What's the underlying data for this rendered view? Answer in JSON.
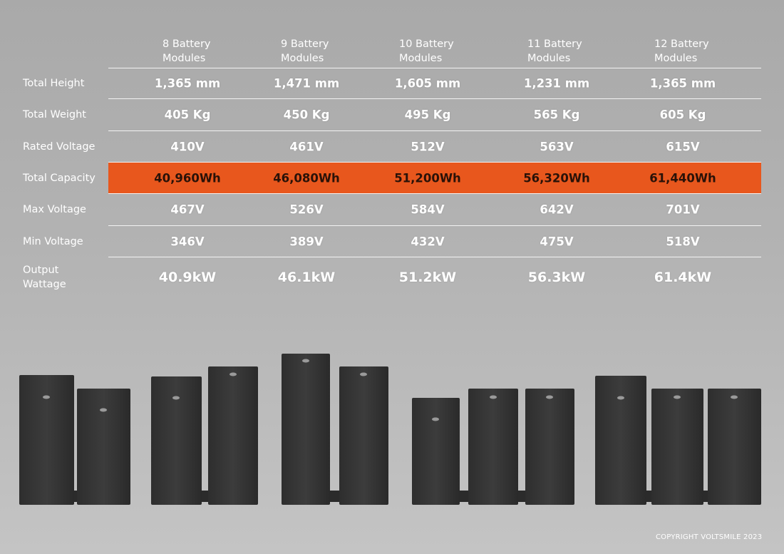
{
  "columns": [
    "8 Battery Modules",
    "9 Battery Modules",
    "10 Battery Modules",
    "11 Battery Modules",
    "12 Battery Modules"
  ],
  "rows": [
    {
      "label": "Total Height",
      "values": [
        "1,365 mm",
        "1,471 mm",
        "1,605 mm",
        "1,231 mm",
        "1,365 mm"
      ]
    },
    {
      "label": "Total Weight",
      "values": [
        "405 Kg",
        "450 Kg",
        "495 Kg",
        "565 Kg",
        "605 Kg"
      ]
    },
    {
      "label": "Rated Voltage",
      "values": [
        "410V",
        "461V",
        "512V",
        "563V",
        "615V"
      ]
    },
    {
      "label": "Total Capacity",
      "values": [
        "40,960Wh",
        "46,080Wh",
        "51,200Wh",
        "56,320Wh",
        "61,440Wh"
      ]
    },
    {
      "label": "Max Voltage",
      "values": [
        "467V",
        "526V",
        "584V",
        "642V",
        "701V"
      ]
    },
    {
      "label": "Min Voltage",
      "values": [
        "346V",
        "389V",
        "432V",
        "475V",
        "518V"
      ]
    },
    {
      "label": "Output Wattage",
      "values": [
        "40.9kW",
        "46.1kW",
        "51.2kW",
        "56.3kW",
        "61.4kW"
      ]
    }
  ],
  "copyright": "COPYRIGHT VOLTSMILE 2023"
}
